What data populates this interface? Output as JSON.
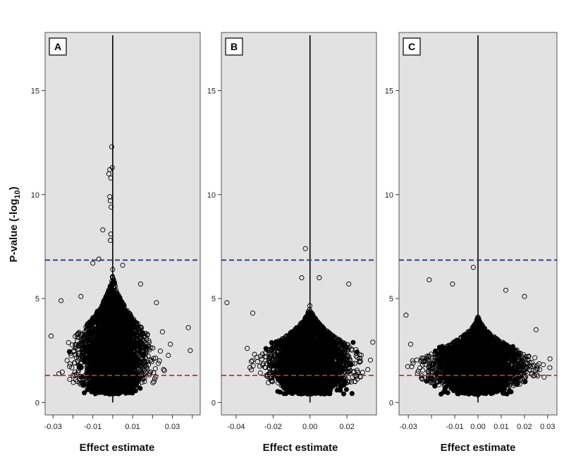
{
  "figure": {
    "ylabel_main": "P-value (-log",
    "ylabel_sub": "10",
    "ylabel_tail": ")",
    "xlabel": "Effect estimate"
  },
  "chart_data": [
    {
      "type": "scatter",
      "panel": "A",
      "xlabel": "Effect estimate",
      "ylabel": "P-value (-log10)",
      "xlim": [
        -0.034,
        0.044
      ],
      "ylim": [
        -0.6,
        17.8
      ],
      "x_ticks": [
        -0.03,
        -0.02,
        -0.01,
        0,
        0.01,
        0.02,
        0.03,
        0.04
      ],
      "x_tick_labels": [
        "-0.03",
        "",
        "-0.01",
        "",
        "0.01",
        "",
        "0.03",
        ""
      ],
      "y_ticks": [
        0,
        5,
        10,
        15
      ],
      "y_tick_labels": [
        "0",
        "5",
        "10",
        "15"
      ],
      "reference_lines": {
        "vertical_x": 0,
        "blue_y": 6.85,
        "red_y": 1.3
      },
      "cloud": {
        "core_sd_x": 0.0075,
        "max_abs_x": 0.032,
        "height_at_zero": 6.5,
        "height_at_edge": 2.2,
        "n_points": 3200
      },
      "outliers": [
        {
          "x": -0.0005,
          "y": 12.3
        },
        {
          "x": -0.0002,
          "y": 11.3
        },
        {
          "x": -0.0015,
          "y": 11.2
        },
        {
          "x": -0.002,
          "y": 11.0
        },
        {
          "x": -0.001,
          "y": 10.8
        },
        {
          "x": -0.0015,
          "y": 9.9
        },
        {
          "x": -0.0012,
          "y": 9.7
        },
        {
          "x": -0.0008,
          "y": 9.4
        },
        {
          "x": -0.005,
          "y": 8.3
        },
        {
          "x": -0.001,
          "y": 8.1
        },
        {
          "x": -0.0012,
          "y": 7.8
        },
        {
          "x": -0.007,
          "y": 6.9
        },
        {
          "x": -0.01,
          "y": 6.7
        },
        {
          "x": 0.005,
          "y": 6.6
        },
        {
          "x": -0.031,
          "y": 3.2
        },
        {
          "x": -0.026,
          "y": 4.9
        },
        {
          "x": -0.016,
          "y": 5.1
        },
        {
          "x": 0.014,
          "y": 5.7
        },
        {
          "x": 0.025,
          "y": 3.4
        },
        {
          "x": 0.038,
          "y": 3.6
        },
        {
          "x": 0.039,
          "y": 2.5
        },
        {
          "x": 0.029,
          "y": 2.8
        },
        {
          "x": 0.022,
          "y": 4.8
        }
      ]
    },
    {
      "type": "scatter",
      "panel": "B",
      "xlabel": "Effect estimate",
      "ylabel": "P-value (-log10)",
      "xlim": [
        -0.048,
        0.036
      ],
      "ylim": [
        -0.6,
        17.8
      ],
      "x_ticks": [
        -0.04,
        -0.02,
        0,
        0.02
      ],
      "x_tick_labels": [
        "-0.04",
        "-0.02",
        "0.00",
        "0.02"
      ],
      "y_ticks": [
        0,
        5,
        10,
        15
      ],
      "y_tick_labels": [
        "0",
        "5",
        "10",
        "15"
      ],
      "reference_lines": {
        "vertical_x": 0,
        "blue_y": 6.85,
        "red_y": 1.3
      },
      "cloud": {
        "core_sd_x": 0.0095,
        "max_abs_x": 0.034,
        "height_at_zero": 4.8,
        "height_at_edge": 2.2,
        "n_points": 3200
      },
      "outliers": [
        {
          "x": -0.0025,
          "y": 7.4
        },
        {
          "x": -0.0045,
          "y": 6.0
        },
        {
          "x": 0.005,
          "y": 6.0
        },
        {
          "x": -0.045,
          "y": 4.8
        },
        {
          "x": -0.031,
          "y": 4.3
        },
        {
          "x": 0.021,
          "y": 5.7
        },
        {
          "x": 0.034,
          "y": 2.9
        },
        {
          "x": -0.034,
          "y": 2.6
        }
      ]
    },
    {
      "type": "scatter",
      "panel": "C",
      "xlabel": "Effect estimate",
      "ylabel": "P-value (-log10)",
      "xlim": [
        -0.034,
        0.034
      ],
      "ylim": [
        -0.6,
        17.8
      ],
      "x_ticks": [
        -0.03,
        -0.02,
        -0.01,
        0,
        0.01,
        0.02,
        0.03
      ],
      "x_tick_labels": [
        "-0.03",
        "",
        "-0.01",
        "0.00",
        "0.01",
        "0.02",
        "0.03"
      ],
      "y_ticks": [
        0,
        5,
        10,
        15
      ],
      "y_tick_labels": [
        "0",
        "5",
        "10",
        "15"
      ],
      "reference_lines": {
        "vertical_x": 0,
        "blue_y": 6.85,
        "red_y": 1.3
      },
      "cloud": {
        "core_sd_x": 0.009,
        "max_abs_x": 0.031,
        "height_at_zero": 4.3,
        "height_at_edge": 1.9,
        "n_points": 3200
      },
      "outliers": [
        {
          "x": -0.002,
          "y": 6.5
        },
        {
          "x": -0.021,
          "y": 5.9
        },
        {
          "x": -0.011,
          "y": 5.7
        },
        {
          "x": 0.012,
          "y": 5.4
        },
        {
          "x": 0.02,
          "y": 5.1
        },
        {
          "x": -0.031,
          "y": 4.2
        },
        {
          "x": -0.029,
          "y": 2.8
        },
        {
          "x": 0.031,
          "y": 2.1
        },
        {
          "x": 0.025,
          "y": 3.5
        }
      ]
    }
  ]
}
